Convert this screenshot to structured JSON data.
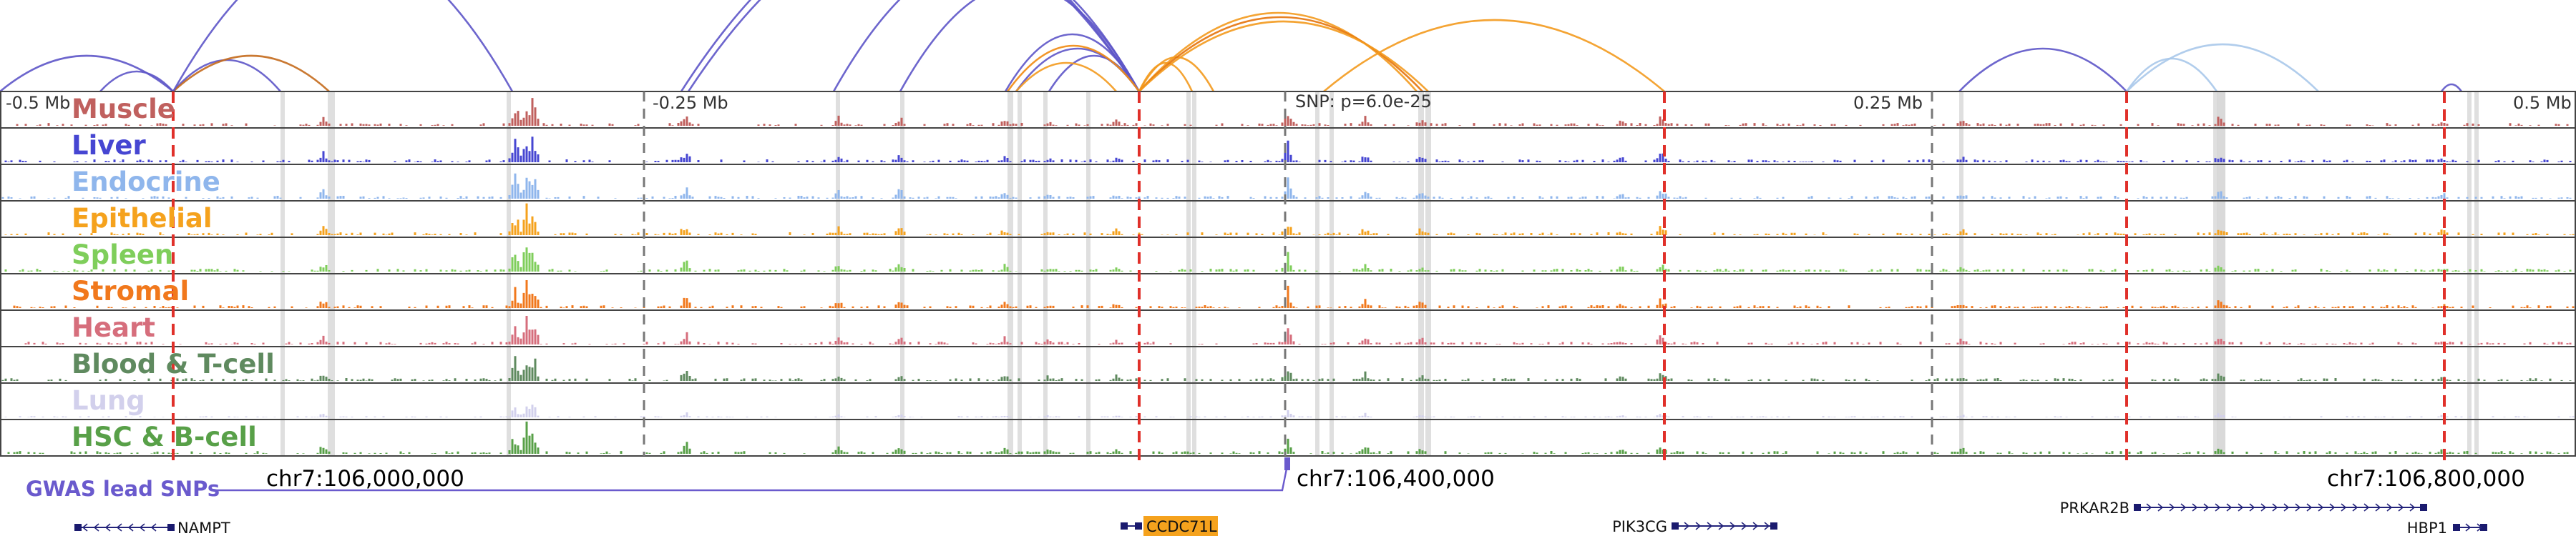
{
  "colors": {
    "loop_purple": "#5d55c8",
    "loop_orange": "#f39a1e",
    "loop_light": "#a8c8ea",
    "snp_red": "#e0302a",
    "gray_band": "#d7d7d7",
    "track_border": "#444444",
    "snp_purple": "#6a5acd"
  },
  "scale": {
    "ticks": [
      "-0.5 Mb",
      "-0.25 Mb",
      "0.25 Mb",
      "0.5 Mb"
    ],
    "snp_label": "SNP: p=6.0e-25"
  },
  "tracks": [
    {
      "label": "Muscle",
      "color": "#c0605e"
    },
    {
      "label": "Liver",
      "color": "#4646d2"
    },
    {
      "label": "Endocrine",
      "color": "#8fb6ec"
    },
    {
      "label": "Epithelial",
      "color": "#f5a21d"
    },
    {
      "label": "Spleen",
      "color": "#7fce5b"
    },
    {
      "label": "Stromal",
      "color": "#f1781c"
    },
    {
      "label": "Heart",
      "color": "#d66e7c"
    },
    {
      "label": "Blood & T-cell",
      "color": "#5f8a5f"
    },
    {
      "label": "Lung",
      "color": "#d2d0ec"
    },
    {
      "label": "HSC & B-cell",
      "color": "#58a048"
    }
  ],
  "gwas_label": "GWAS lead SNPs",
  "coordinates": [
    "chr7:106,000,000",
    "chr7:106,400,000",
    "chr7:106,800,000"
  ],
  "genes": [
    {
      "name": "NAMPT",
      "strand": "-",
      "highlight": false
    },
    {
      "name": "CCDC71L",
      "strand": "+",
      "highlight": true,
      "highlight_color": "#f5a21d"
    },
    {
      "name": "PIK3CG",
      "strand": "+",
      "highlight": false
    },
    {
      "name": "PRKAR2B",
      "strand": "+",
      "highlight": false
    },
    {
      "name": "HBP1",
      "strand": "+",
      "highlight": false
    }
  ]
}
